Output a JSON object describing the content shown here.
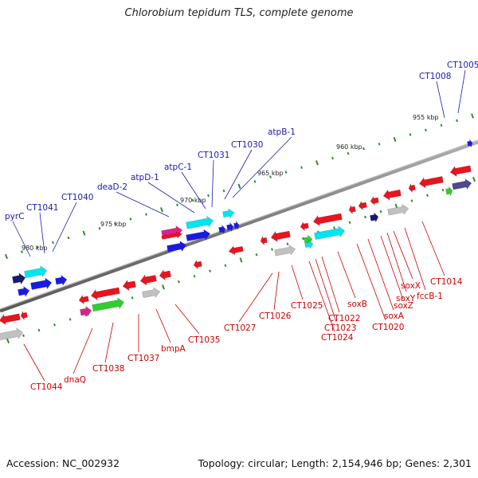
{
  "title": "Chlorobium tepidum TLS, complete genome",
  "footer": {
    "accession": "Accession: NC_002932",
    "summary": "Topology: circular; Length: 2,154,946 bp; Genes: 2,301"
  },
  "colors": {
    "backbone": "#808080",
    "ruler_dot": "#2e8b2e",
    "top_label": "#1a1ab0",
    "bottom_label": "#cc0000",
    "gene_red": "#e8141e",
    "gene_blue": "#1a1ae6",
    "gene_cyan": "#00e6f0",
    "gene_gray": "#c0c0c0",
    "gene_dark": "#1a1a70",
    "gene_green": "#33cc33",
    "gene_magenta": "#e0208a",
    "gene_purple": "#504890"
  },
  "ruler": {
    "ticks": [
      "955 kbp",
      "960 kbp",
      "965 kbp",
      "970 kbp",
      "975 kbp",
      "980 kbp"
    ]
  },
  "genes_top": [
    "CT1005",
    "CT1008",
    "atpB-1",
    "CT1030",
    "CT1031",
    "atpC-1",
    "atpD-1",
    "deaD-2",
    "CT1040",
    "CT1041",
    "pyrC"
  ],
  "genes_bottom": [
    "CT1014",
    "fccB-1",
    "soxY",
    "soxX",
    "soxZ",
    "soxA",
    "CT1020",
    "soxB",
    "CT1022",
    "CT1023",
    "CT1024",
    "CT1025",
    "CT1026",
    "CT1027",
    "CT1035",
    "bmpA",
    "CT1037",
    "CT1038",
    "dnaQ",
    "CT1044"
  ]
}
